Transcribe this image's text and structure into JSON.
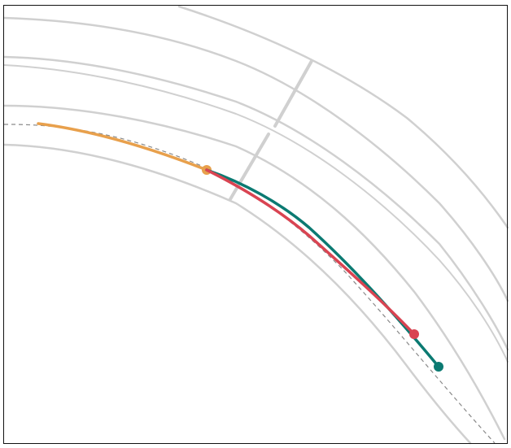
{
  "colors": {
    "background": "#ffffff",
    "lane_line": "#d0d0d0",
    "reference_path": "#8a8a8a",
    "history_trajectory": "#e8a04c",
    "predicted_trajectory": "#d94452",
    "ground_truth_trajectory": "#0b7a72",
    "frame": "#111111"
  }
}
